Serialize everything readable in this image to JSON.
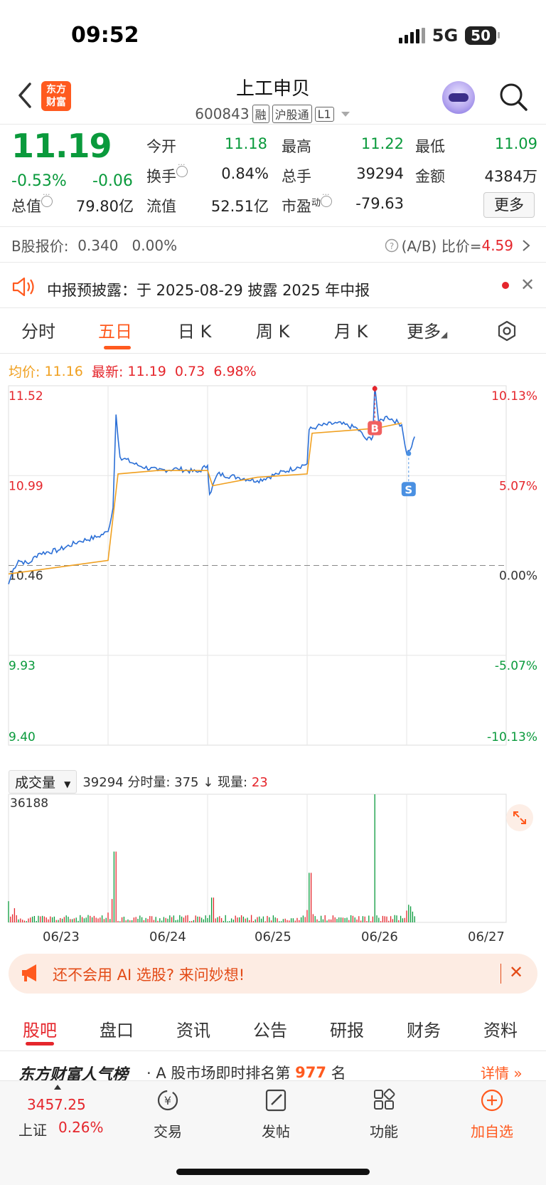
{
  "status": {
    "time": "09:52",
    "network": "5G",
    "battery": "50"
  },
  "header": {
    "logo_line1": "东方",
    "logo_line2": "财富",
    "stock_name": "上工申贝",
    "code": "600843",
    "tags": [
      "融",
      "沪股通",
      "L1"
    ]
  },
  "quote": {
    "price": "11.19",
    "change_pct": "-0.53%",
    "change_abs": "-0.06",
    "fields": [
      {
        "label": "今开",
        "value": "11.18",
        "color": "green"
      },
      {
        "label": "最高",
        "value": "11.22",
        "color": "green"
      },
      {
        "label": "最低",
        "value": "11.09",
        "color": "green"
      },
      {
        "label": "换手",
        "value": "0.84%",
        "color": "black"
      },
      {
        "label": "总手",
        "value": "39294",
        "color": "black"
      },
      {
        "label": "金额",
        "value": "4384万",
        "color": "black"
      },
      {
        "label": "总值",
        "value": "79.80亿",
        "color": "black"
      },
      {
        "label": "流值",
        "value": "52.51亿",
        "color": "black"
      },
      {
        "label": "市盈",
        "label_sup": "动",
        "value": "-79.63",
        "color": "black"
      }
    ],
    "more_label": "更多"
  },
  "b_share": {
    "label": "B股报价:",
    "price": "0.340",
    "pct": "0.00%",
    "ratio_label": "(A/B) 比价=",
    "ratio_value": "4.59"
  },
  "notice": {
    "text": "中报预披露：于 2025-08-29 披露 2025 年中报"
  },
  "tabs": [
    "分时",
    "五日",
    "日 K",
    "周 K",
    "月 K",
    "更多"
  ],
  "active_tab": "五日",
  "chart_info": {
    "avg_label": "均价:",
    "avg_value": "11.16",
    "latest_label": "最新:",
    "latest_value": "11.19",
    "latest_chg": "0.73",
    "latest_pct": "6.98%"
  },
  "chart_data": {
    "type": "line",
    "series": [
      {
        "name": "price"
      },
      {
        "name": "avg"
      }
    ],
    "y_labels_left": [
      "11.52",
      "10.99",
      "10.46",
      "9.93",
      "9.40"
    ],
    "y_labels_right": [
      "10.13%",
      "5.07%",
      "0.00%",
      "-5.07%",
      "-10.13%"
    ],
    "ylim": [
      9.4,
      11.52
    ],
    "base": 10.46,
    "days": [
      "06/23",
      "06/24",
      "06/25",
      "06/26",
      "06/27"
    ],
    "price_points": [
      [
        0,
        10.35
      ],
      [
        0.05,
        10.44
      ],
      [
        0.1,
        10.49
      ],
      [
        0.2,
        10.47
      ],
      [
        0.3,
        10.53
      ],
      [
        0.5,
        10.55
      ],
      [
        0.7,
        10.6
      ],
      [
        0.9,
        10.63
      ],
      [
        1.0,
        10.66
      ],
      [
        1.05,
        10.8
      ],
      [
        1.08,
        11.35
      ],
      [
        1.12,
        11.1
      ],
      [
        1.3,
        11.05
      ],
      [
        1.5,
        11.02
      ],
      [
        1.7,
        11.03
      ],
      [
        1.9,
        11.01
      ],
      [
        2.0,
        11.05
      ],
      [
        2.02,
        10.88
      ],
      [
        2.1,
        11.0
      ],
      [
        2.3,
        10.98
      ],
      [
        2.5,
        10.96
      ],
      [
        2.7,
        11.0
      ],
      [
        2.9,
        11.04
      ],
      [
        3.0,
        11.06
      ],
      [
        3.02,
        11.26
      ],
      [
        3.1,
        11.28
      ],
      [
        3.3,
        11.3
      ],
      [
        3.5,
        11.27
      ],
      [
        3.6,
        11.2
      ],
      [
        3.66,
        11.22
      ],
      [
        3.68,
        11.52
      ],
      [
        3.72,
        11.3
      ],
      [
        3.8,
        11.34
      ],
      [
        3.95,
        11.29
      ],
      [
        4.0,
        11.12
      ],
      [
        4.05,
        11.16
      ],
      [
        4.08,
        11.22
      ]
    ],
    "avg_points": [
      [
        0,
        10.41
      ],
      [
        0.5,
        10.45
      ],
      [
        1.0,
        10.49
      ],
      [
        1.1,
        11.0
      ],
      [
        1.5,
        11.02
      ],
      [
        2.0,
        11.02
      ],
      [
        2.05,
        10.93
      ],
      [
        2.5,
        10.98
      ],
      [
        3.0,
        11.0
      ],
      [
        3.05,
        11.24
      ],
      [
        3.5,
        11.26
      ],
      [
        3.7,
        11.27
      ],
      [
        3.95,
        11.3
      ]
    ],
    "markers": {
      "buy": "B",
      "sell": "S"
    }
  },
  "volume": {
    "selector_label": "成交量",
    "total": "39294",
    "info_label": "分时量:",
    "info_value": "375",
    "now_label": "现量:",
    "now_value": "23",
    "max_label": "36188",
    "spikes": [
      [
        1.07,
        20000
      ],
      [
        2.05,
        7000
      ],
      [
        3.03,
        14000
      ],
      [
        3.68,
        36188
      ]
    ]
  },
  "ai_banner": {
    "text": "还不会用 AI 选股? 来问妙想!"
  },
  "tabs2": [
    "股吧",
    "盘口",
    "资讯",
    "公告",
    "研报",
    "财务",
    "资料"
  ],
  "active_tab2": "股吧",
  "rank": {
    "title": "东方财富人气榜",
    "text_prefix": "· A 股市场即时排名第",
    "rank_value": "977",
    "text_suffix": "名",
    "detail": "详情"
  },
  "bottom_nav": {
    "index_value": "3457.25",
    "index_name": "上证",
    "index_chg": "0.26%",
    "items": [
      {
        "label": "交易",
        "icon": "trade-icon"
      },
      {
        "label": "发帖",
        "icon": "post-icon"
      },
      {
        "label": "功能",
        "icon": "function-icon"
      },
      {
        "label": "加自选",
        "icon": "add-watchlist-icon"
      }
    ]
  }
}
